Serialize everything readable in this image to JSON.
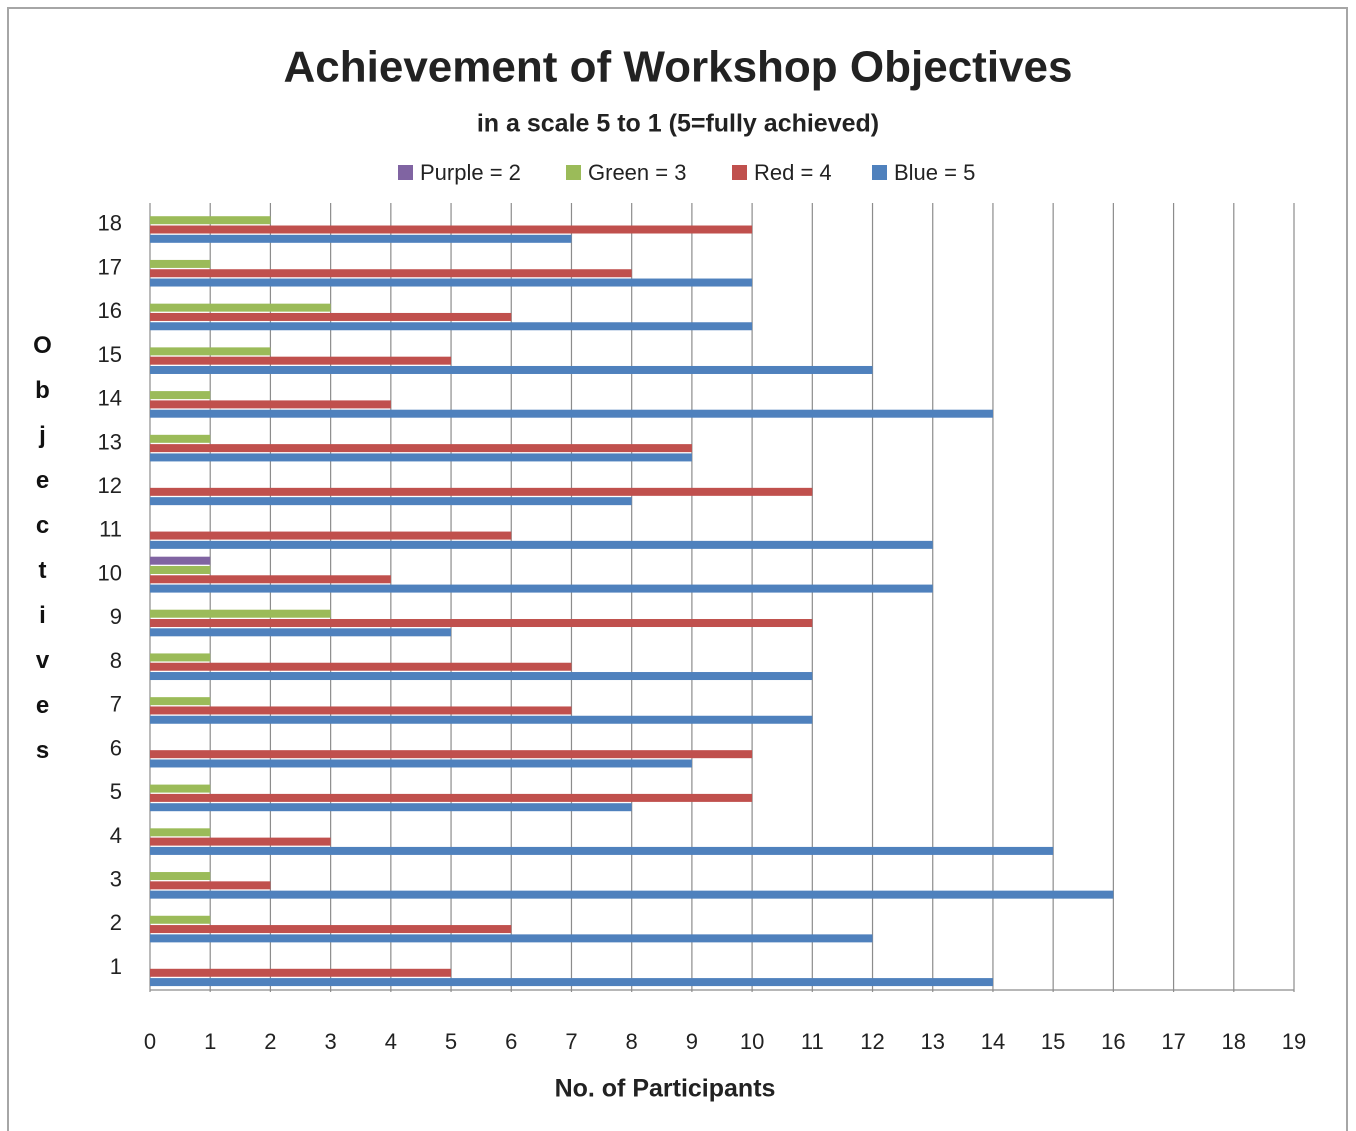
{
  "chart_data": {
    "type": "hbar",
    "title": "Achievement of Workshop Objectives",
    "subtitle": "in a scale 5 to 1 (5=fully achieved)",
    "x_label": "No. of Participants",
    "y_label": "Objectives",
    "categories": [
      "1",
      "2",
      "3",
      "4",
      "5",
      "6",
      "7",
      "8",
      "9",
      "10",
      "11",
      "12",
      "13",
      "14",
      "15",
      "16",
      "17",
      "18"
    ],
    "series": [
      {
        "name": "Purple = 2",
        "color": "#8064a2",
        "values": [
          0,
          0,
          0,
          0,
          0,
          0,
          0,
          0,
          0,
          1,
          0,
          0,
          0,
          0,
          0,
          0,
          0,
          0
        ]
      },
      {
        "name": "Green = 3",
        "color": "#9bbb59",
        "values": [
          0,
          1,
          1,
          1,
          1,
          0,
          1,
          1,
          3,
          1,
          0,
          0,
          1,
          1,
          2,
          3,
          1,
          2
        ]
      },
      {
        "name": "Red = 4",
        "color": "#c0504d",
        "values": [
          5,
          6,
          2,
          3,
          10,
          10,
          7,
          7,
          11,
          4,
          6,
          11,
          9,
          4,
          5,
          6,
          8,
          10
        ]
      },
      {
        "name": "Blue = 5",
        "color": "#4f81bd",
        "values": [
          14,
          12,
          16,
          15,
          8,
          9,
          11,
          11,
          5,
          13,
          13,
          8,
          9,
          14,
          12,
          10,
          10,
          7
        ]
      }
    ],
    "xlim": [
      0,
      19
    ],
    "xticks": [
      0,
      1,
      2,
      3,
      4,
      5,
      6,
      7,
      8,
      9,
      10,
      11,
      12,
      13,
      14,
      15,
      16,
      17,
      18,
      19
    ],
    "grid": true,
    "legend": "top"
  }
}
